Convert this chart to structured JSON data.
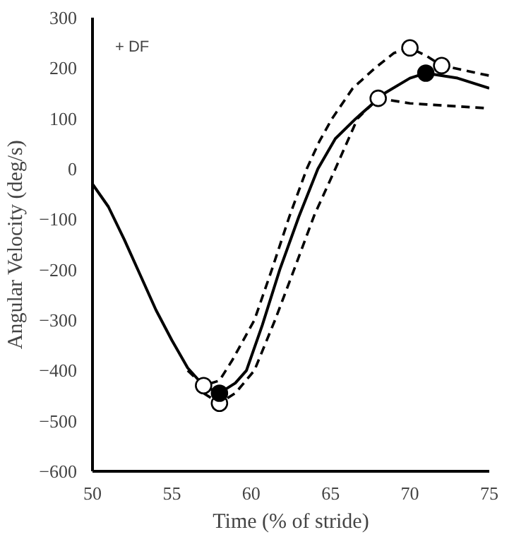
{
  "chart_data": {
    "type": "line",
    "xlabel": "Time (% of stride)",
    "ylabel": "Angular Velocity (deg/s)",
    "annotations": [
      "+ DF"
    ],
    "xlim": [
      50,
      75
    ],
    "ylim": [
      -600,
      300
    ],
    "xticks": [
      50,
      55,
      60,
      65,
      70,
      75
    ],
    "yticks": [
      -600,
      -500,
      -400,
      -300,
      -200,
      -100,
      0,
      100,
      200,
      300
    ],
    "series": [
      {
        "color": "#000000",
        "line_style": "solid",
        "marker": "none",
        "x": [
          50,
          51,
          52,
          53,
          54,
          55,
          56,
          57,
          58,
          59,
          59.7,
          60.7,
          61.8,
          63,
          64.2,
          65.3,
          66.6,
          68.4,
          70,
          71,
          73,
          75
        ],
        "values": [
          -30,
          -75,
          -140,
          -210,
          -280,
          -340,
          -395,
          -430,
          -445,
          -425,
          -400,
          -310,
          -200,
          -95,
          0,
          60,
          100,
          150,
          180,
          190,
          180,
          160
        ]
      },
      {
        "color": "#000000",
        "line_style": "dashed",
        "marker": "none",
        "x": [
          56,
          57,
          58,
          58.8,
          59.5,
          60.2,
          61.3,
          62.4,
          63.5,
          64.3,
          65.1,
          66.4,
          67.8,
          69,
          70,
          71,
          72,
          73.5,
          75
        ],
        "values": [
          -400,
          -430,
          -420,
          -380,
          -340,
          -300,
          -200,
          -95,
          0,
          55,
          100,
          160,
          200,
          230,
          240,
          225,
          205,
          195,
          185
        ]
      },
      {
        "color": "#000000",
        "line_style": "dashed",
        "marker": "none",
        "x": [
          57,
          58,
          59,
          60.2,
          61.5,
          62.7,
          64,
          65.3,
          66.7,
          68,
          70,
          72.5,
          75
        ],
        "values": [
          -445,
          -465,
          -445,
          -400,
          -300,
          -200,
          -90,
          0,
          100,
          140,
          130,
          125,
          120
        ]
      },
      {
        "type": "scatter",
        "color": "#ffffff",
        "marker": "circle",
        "x": [
          57,
          58,
          68,
          70,
          72
        ],
        "values": [
          -430,
          -465,
          140,
          240,
          205
        ]
      },
      {
        "type": "scatter",
        "color": "#000000",
        "marker": "circle",
        "x": [
          58,
          71
        ],
        "values": [
          -445,
          190
        ]
      }
    ]
  }
}
